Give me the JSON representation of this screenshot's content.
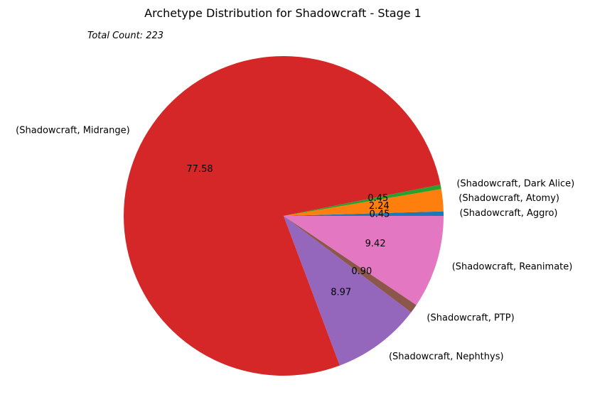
{
  "chart_data": {
    "type": "pie",
    "title": "Archetype Distribution for Shadowcraft - Stage 1",
    "annotation": "Total Count: 223",
    "start_angle_deg": 0,
    "direction": "counterclockwise",
    "slices": [
      {
        "label": "(Shadowcraft, Aggro)",
        "value": 0.45,
        "pct_text": "0.45",
        "color": "#1f77b4"
      },
      {
        "label": "(Shadowcraft, Atomy)",
        "value": 2.24,
        "pct_text": "2.24",
        "color": "#ff7f0e"
      },
      {
        "label": "(Shadowcraft, Dark Alice)",
        "value": 0.45,
        "pct_text": "0.45",
        "color": "#2ca02c"
      },
      {
        "label": "(Shadowcraft, Midrange)",
        "value": 77.58,
        "pct_text": "77.58",
        "color": "#d62728"
      },
      {
        "label": "(Shadowcraft, Nephthys)",
        "value": 8.97,
        "pct_text": "8.97",
        "color": "#9467bd"
      },
      {
        "label": "(Shadowcraft, PTP)",
        "value": 0.9,
        "pct_text": "0.90",
        "color": "#8c564b"
      },
      {
        "label": "(Shadowcraft, Reanimate)",
        "value": 9.42,
        "pct_text": "9.42",
        "color": "#e377c2"
      }
    ]
  }
}
